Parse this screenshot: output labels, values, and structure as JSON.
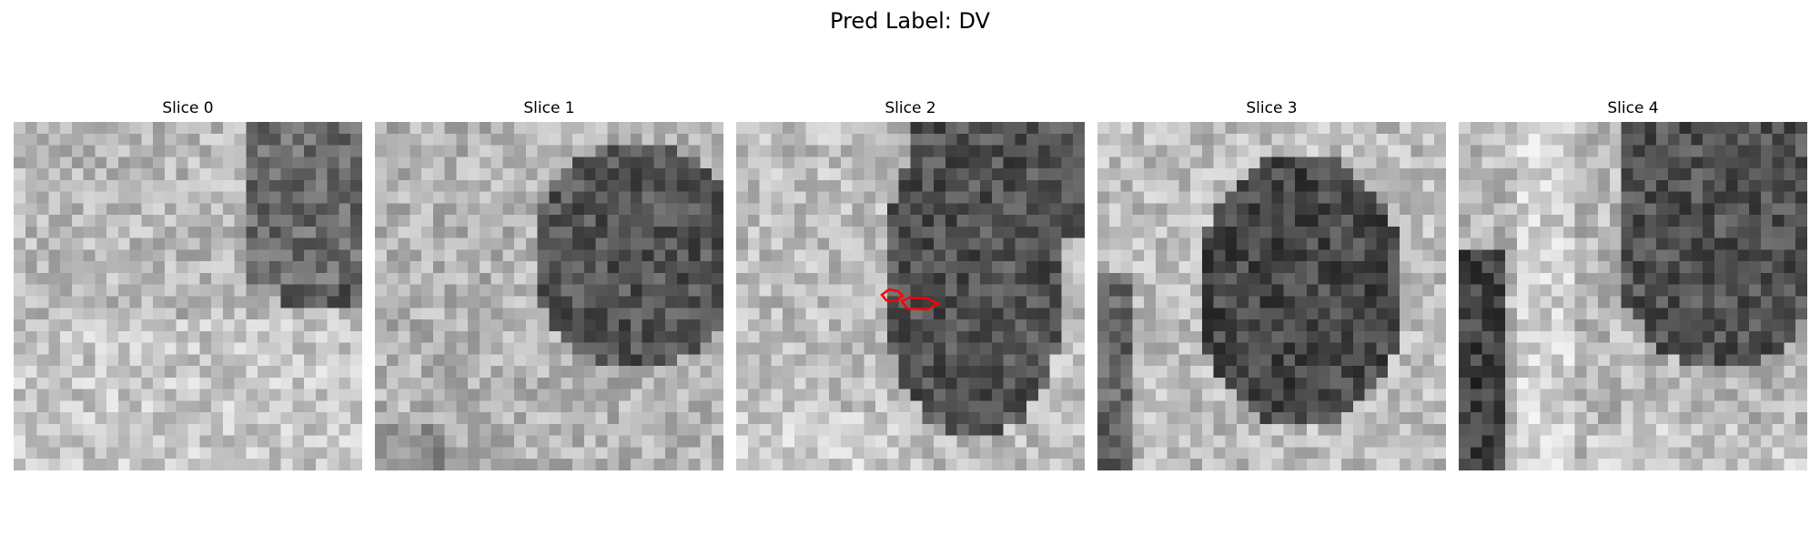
{
  "figure": {
    "title": "Pred Label: DV"
  },
  "slices": [
    {
      "title": "Slice 0",
      "has_contour": false
    },
    {
      "title": "Slice 1",
      "has_contour": false
    },
    {
      "title": "Slice 2",
      "has_contour": true
    },
    {
      "title": "Slice 3",
      "has_contour": false
    },
    {
      "title": "Slice 4",
      "has_contour": false
    }
  ],
  "colors": {
    "contour": "#ff0000",
    "background": "#ffffff"
  }
}
